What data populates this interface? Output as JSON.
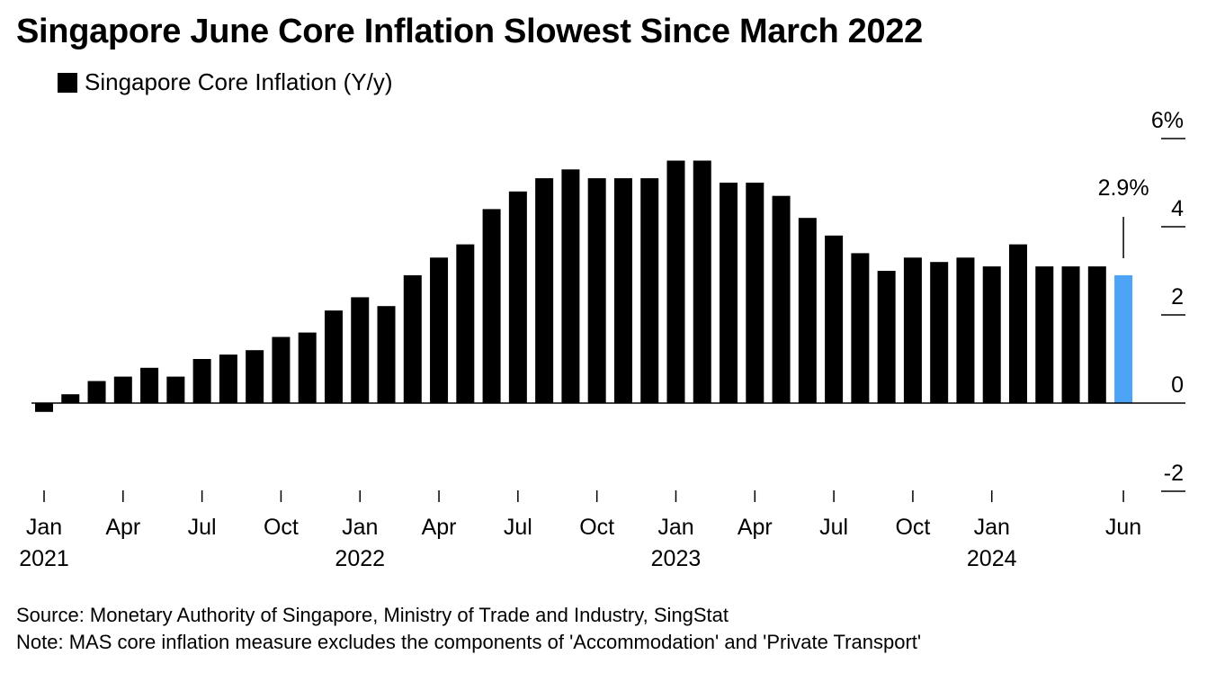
{
  "title": "Singapore June Core Inflation Slowest Since March 2022",
  "source": "Source: Monetary Authority of Singapore, Ministry of Trade and Industry, SingStat",
  "note": "Note: MAS core inflation measure excludes the components of 'Accommodation' and 'Private Transport'",
  "chart_data": {
    "type": "bar",
    "title": "Singapore June Core Inflation Slowest Since March 2022",
    "series": [
      {
        "name": "Singapore Core Inflation (Y/y)",
        "color": "#000000",
        "highlight_color": "#4da3f5",
        "highlight_index": 41,
        "values": [
          -0.2,
          0.2,
          0.5,
          0.6,
          0.8,
          0.6,
          1.0,
          1.1,
          1.2,
          1.5,
          1.6,
          2.1,
          2.4,
          2.2,
          2.9,
          3.3,
          3.6,
          4.4,
          4.8,
          5.1,
          5.3,
          5.1,
          5.1,
          5.1,
          5.5,
          5.5,
          5.0,
          5.0,
          4.7,
          4.2,
          3.8,
          3.4,
          3.0,
          3.3,
          3.2,
          3.3,
          3.1,
          3.6,
          3.1,
          3.1,
          3.1,
          2.9
        ]
      }
    ],
    "x_start": "Jan 2021",
    "x_ticks": [
      {
        "index": 0,
        "label": "Jan",
        "year": "2021"
      },
      {
        "index": 3,
        "label": "Apr",
        "year": ""
      },
      {
        "index": 6,
        "label": "Jul",
        "year": ""
      },
      {
        "index": 9,
        "label": "Oct",
        "year": ""
      },
      {
        "index": 12,
        "label": "Jan",
        "year": "2022"
      },
      {
        "index": 15,
        "label": "Apr",
        "year": ""
      },
      {
        "index": 18,
        "label": "Jul",
        "year": ""
      },
      {
        "index": 21,
        "label": "Oct",
        "year": ""
      },
      {
        "index": 24,
        "label": "Jan",
        "year": "2023"
      },
      {
        "index": 27,
        "label": "Apr",
        "year": ""
      },
      {
        "index": 30,
        "label": "Jul",
        "year": ""
      },
      {
        "index": 33,
        "label": "Oct",
        "year": ""
      },
      {
        "index": 36,
        "label": "Jan",
        "year": "2024"
      },
      {
        "index": 41,
        "label": "Jun",
        "year": ""
      }
    ],
    "y_ticks": [
      {
        "value": 6,
        "label": "6%"
      },
      {
        "value": 4,
        "label": "4"
      },
      {
        "value": 2,
        "label": "2"
      },
      {
        "value": 0,
        "label": "0"
      },
      {
        "value": -2,
        "label": "-2"
      }
    ],
    "ylim": [
      -2,
      6
    ],
    "y_axis_position": "right",
    "grid": false,
    "legend_position": "top-left",
    "annotation": {
      "index": 41,
      "text": "2.9%"
    }
  }
}
